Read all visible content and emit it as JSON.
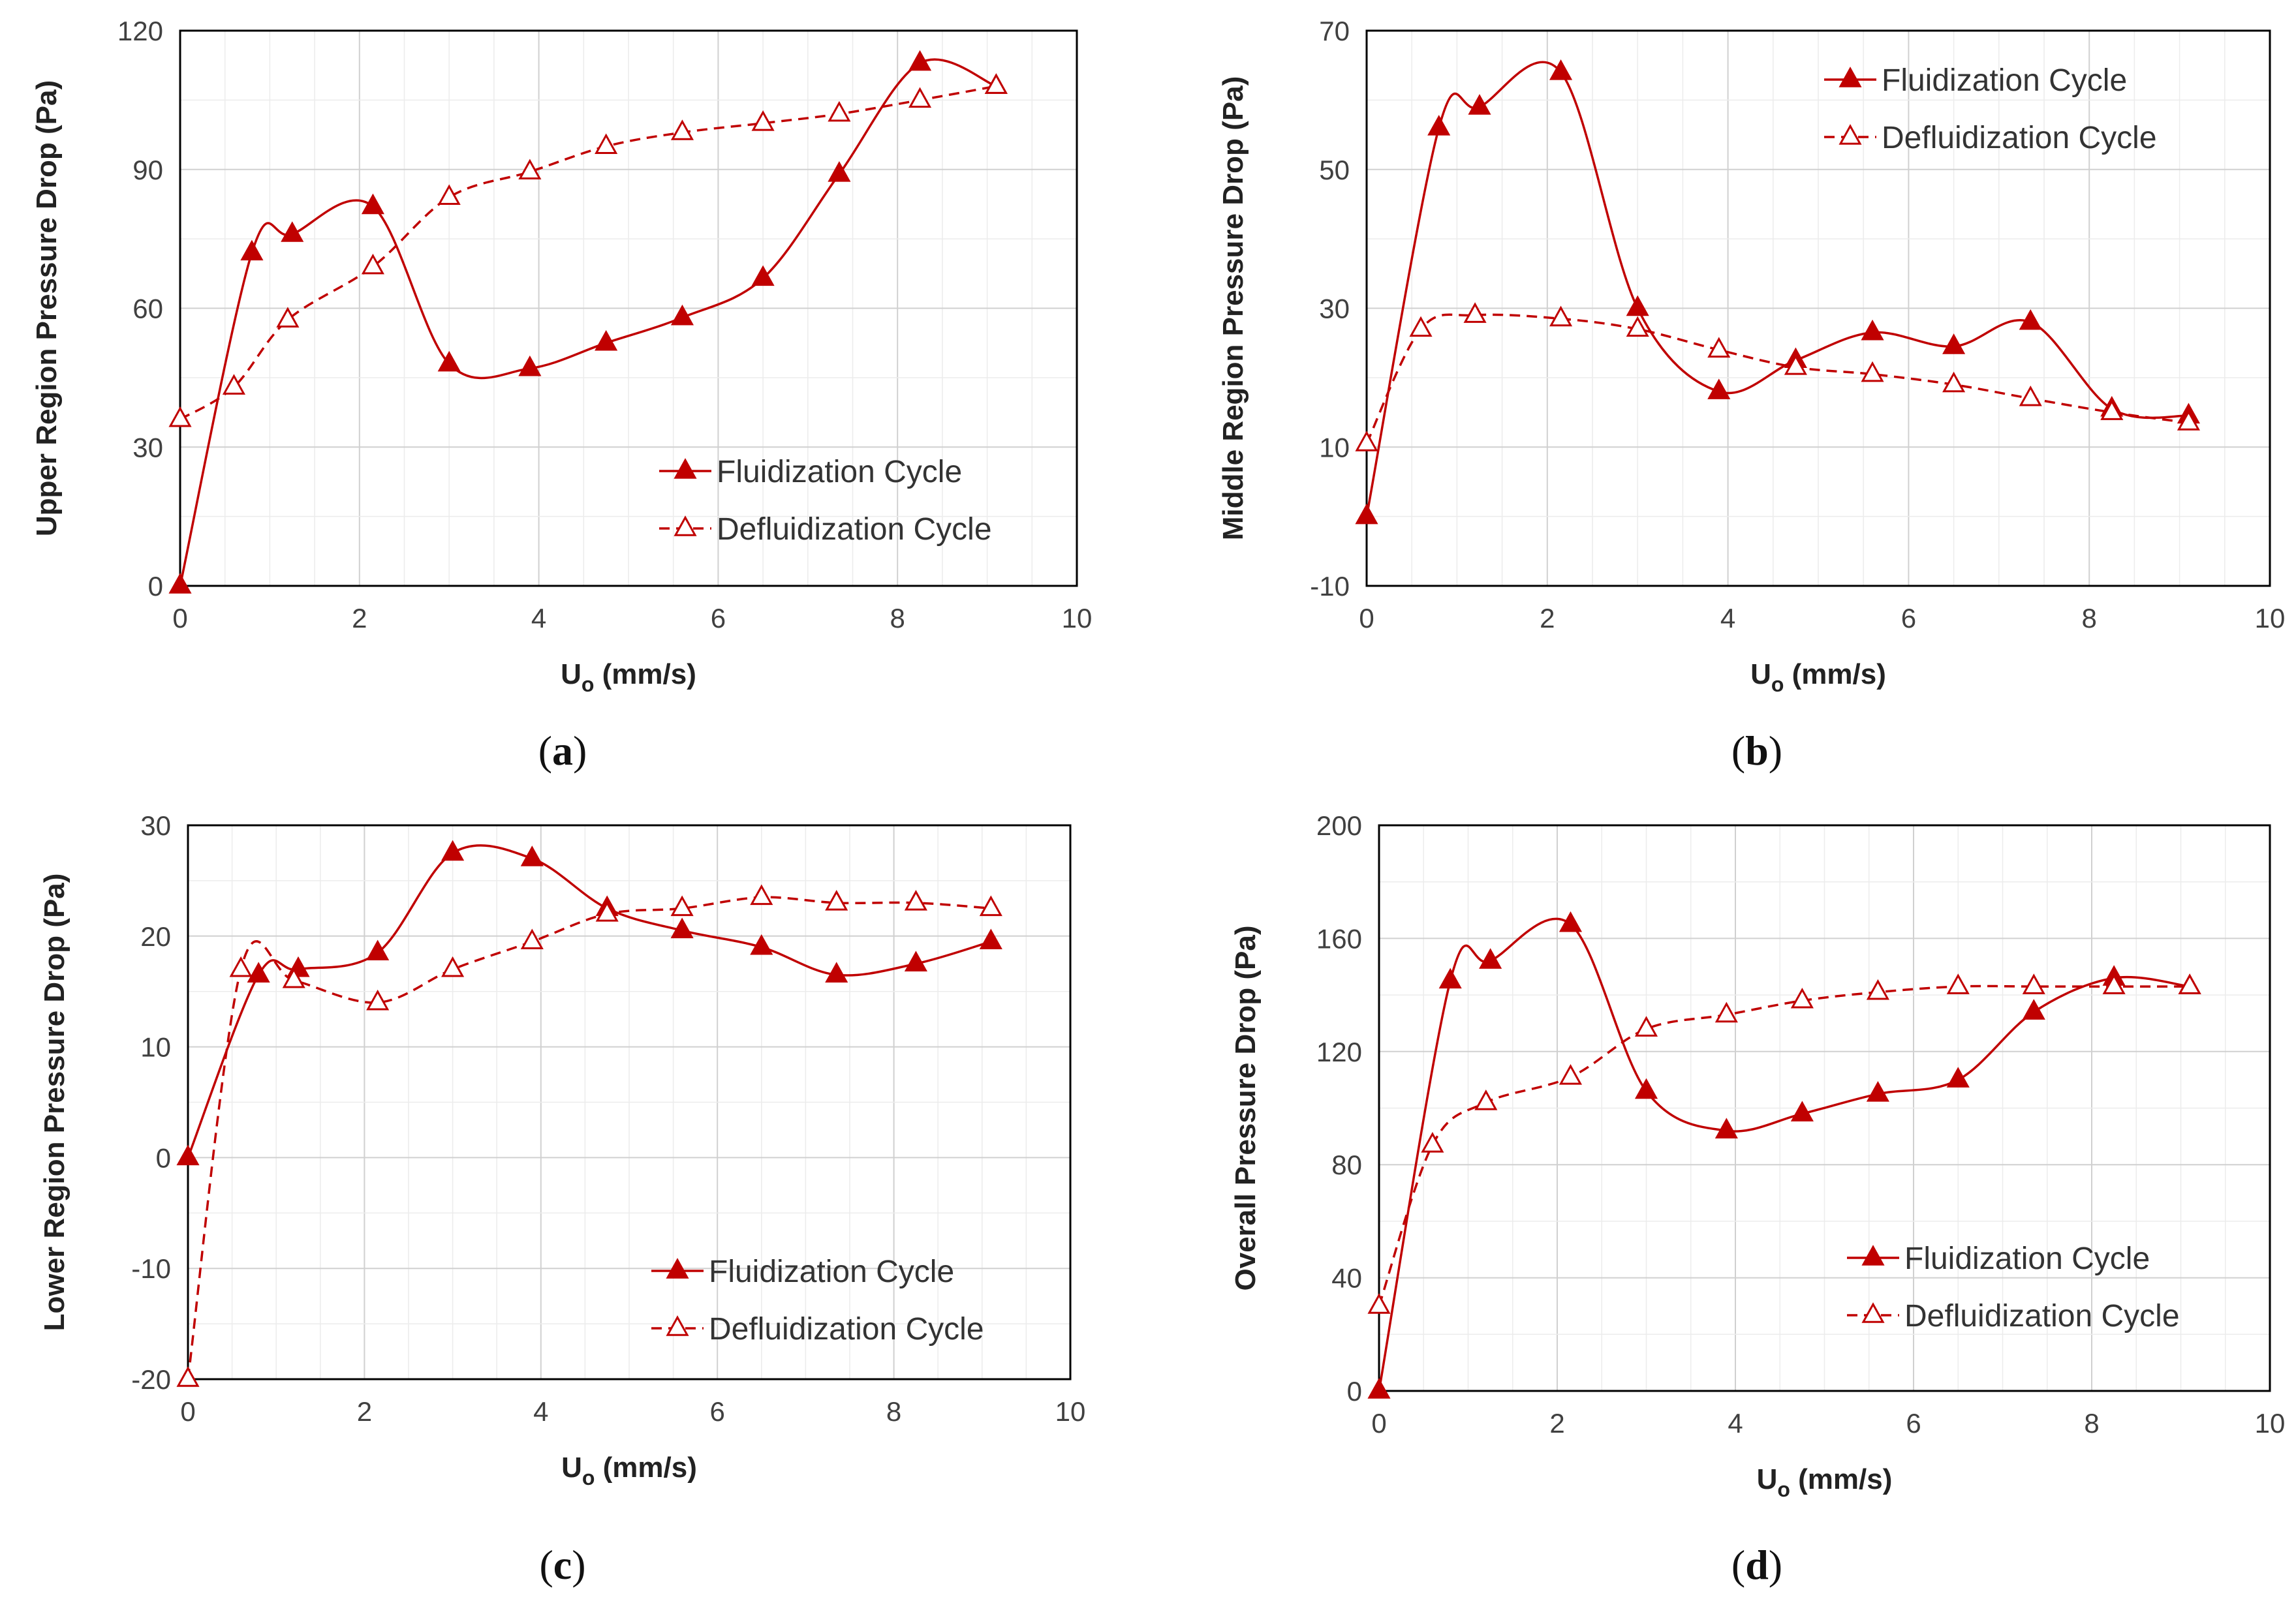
{
  "colors": {
    "series": "#C00000",
    "grid": "#d9d9d9",
    "frame": "#000000"
  },
  "chart_data": [
    {
      "type": "line",
      "panel_label": "a",
      "xlabel": "U",
      "xlabel_sub": "o",
      "xlabel_unit": " (mm/s)",
      "ylabel": "Upper Region Pressure Drop  (Pa)",
      "xlim": [
        0,
        10
      ],
      "ylim": [
        0,
        120
      ],
      "xticks": [
        0,
        2,
        4,
        6,
        8,
        10
      ],
      "yticks": [
        0,
        30,
        60,
        90,
        120
      ],
      "grid": true,
      "legend_position": "bottom-right",
      "series": [
        {
          "name": "Fluidization Cycle",
          "style": "solid",
          "marker": "filled-triangle",
          "x": [
            0,
            0.8,
            1.25,
            2.15,
            3.0,
            3.9,
            4.75,
            5.6,
            6.5,
            7.35,
            8.25,
            9.1
          ],
          "y": [
            0,
            72,
            76,
            82,
            48,
            47,
            52.5,
            58,
            66.5,
            89,
            113,
            108
          ]
        },
        {
          "name": "Defluidization Cycle",
          "style": "dashed",
          "marker": "open-triangle",
          "x": [
            0,
            0.6,
            1.2,
            2.15,
            3.0,
            3.9,
            4.75,
            5.6,
            6.5,
            7.35,
            8.25,
            9.1
          ],
          "y": [
            36,
            43,
            57.5,
            69,
            84,
            89.5,
            95,
            98,
            100,
            102,
            105,
            108
          ]
        }
      ]
    },
    {
      "type": "line",
      "panel_label": "b",
      "xlabel": "U",
      "xlabel_sub": "o",
      "xlabel_unit": " (mm/s)",
      "ylabel": "Middle Region Pressure Drop  (Pa)",
      "xlim": [
        0,
        10
      ],
      "ylim": [
        -10,
        70
      ],
      "xticks": [
        0,
        2,
        4,
        6,
        8,
        10
      ],
      "yticks": [
        -10,
        10,
        30,
        50,
        70
      ],
      "grid": true,
      "legend_position": "top-right",
      "series": [
        {
          "name": "Fluidization Cycle",
          "style": "solid",
          "marker": "filled-triangle",
          "x": [
            0,
            0.8,
            1.25,
            2.15,
            3.0,
            3.9,
            4.75,
            5.6,
            6.5,
            7.35,
            8.25,
            9.1
          ],
          "y": [
            0,
            56,
            59,
            64,
            30,
            18,
            22.5,
            26.5,
            24.5,
            28,
            15.5,
            14.5
          ]
        },
        {
          "name": "Defluidization Cycle",
          "style": "dashed",
          "marker": "open-triangle",
          "x": [
            0,
            0.6,
            1.2,
            2.15,
            3.0,
            3.9,
            4.75,
            5.6,
            6.5,
            7.35,
            8.25,
            9.1
          ],
          "y": [
            10.5,
            27,
            29,
            28.5,
            27,
            24,
            21.5,
            20.5,
            19,
            17,
            15,
            13.5
          ]
        }
      ]
    },
    {
      "type": "line",
      "panel_label": "c",
      "xlabel": "U",
      "xlabel_sub": "o",
      "xlabel_unit": " (mm/s)",
      "ylabel": "Lower Region Pressure Drop  (Pa)",
      "xlim": [
        0,
        10
      ],
      "ylim": [
        -20,
        30
      ],
      "xticks": [
        0,
        2,
        4,
        6,
        8,
        10
      ],
      "yticks": [
        -20,
        -10,
        0,
        10,
        20,
        30
      ],
      "grid": true,
      "legend_position": "bottom-right",
      "series": [
        {
          "name": "Fluidization Cycle",
          "style": "solid",
          "marker": "filled-triangle",
          "x": [
            0,
            0.8,
            1.25,
            2.15,
            3.0,
            3.9,
            4.75,
            5.6,
            6.5,
            7.35,
            8.25,
            9.1
          ],
          "y": [
            0,
            16.5,
            17,
            18.5,
            27.5,
            27,
            22.5,
            20.5,
            19,
            16.5,
            17.5,
            19.5
          ]
        },
        {
          "name": "Defluidization Cycle",
          "style": "dashed",
          "marker": "open-triangle",
          "x": [
            0,
            0.6,
            1.2,
            2.15,
            3.0,
            3.9,
            4.75,
            5.6,
            6.5,
            7.35,
            8.25,
            9.1
          ],
          "y": [
            -20,
            17,
            16,
            14,
            17,
            19.5,
            22,
            22.5,
            23.5,
            23,
            23,
            22.5
          ]
        }
      ]
    },
    {
      "type": "line",
      "panel_label": "d",
      "xlabel": "U",
      "xlabel_sub": "o",
      "xlabel_unit": " (mm/s)",
      "ylabel": "Overall Pressure Drop  (Pa)",
      "xlim": [
        0,
        10
      ],
      "ylim": [
        0,
        200
      ],
      "xticks": [
        0,
        2,
        4,
        6,
        8,
        10
      ],
      "yticks": [
        0,
        40,
        80,
        120,
        160,
        200
      ],
      "grid": true,
      "legend_position": "bottom-right",
      "series": [
        {
          "name": "Fluidization Cycle",
          "style": "solid",
          "marker": "filled-triangle",
          "x": [
            0,
            0.8,
            1.25,
            2.15,
            3.0,
            3.9,
            4.75,
            5.6,
            6.5,
            7.35,
            8.25,
            9.1
          ],
          "y": [
            0,
            145,
            152,
            165,
            106,
            92,
            98,
            105,
            110,
            134,
            146,
            143
          ]
        },
        {
          "name": "Defluidization Cycle",
          "style": "dashed",
          "marker": "open-triangle",
          "x": [
            0,
            0.6,
            1.2,
            2.15,
            3.0,
            3.9,
            4.75,
            5.6,
            6.5,
            7.35,
            8.25,
            9.1
          ],
          "y": [
            30,
            87,
            102,
            111,
            128,
            133,
            138,
            141,
            143,
            143,
            143,
            143
          ]
        }
      ]
    }
  ]
}
